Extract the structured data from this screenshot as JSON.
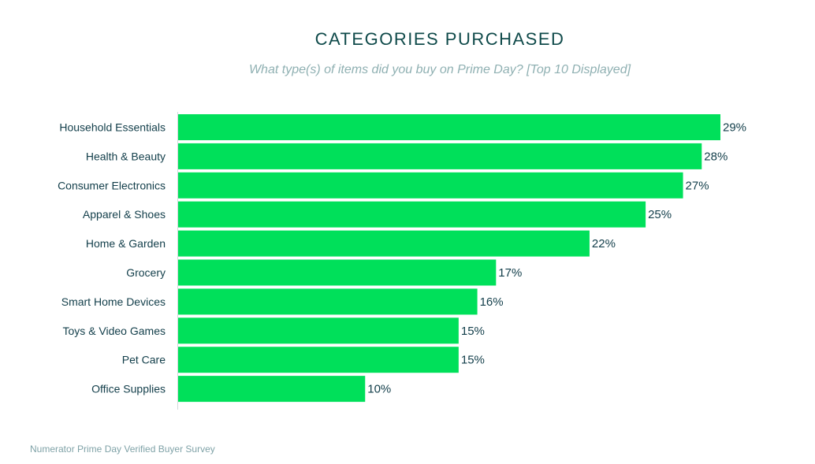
{
  "chart_data": {
    "type": "bar",
    "orientation": "horizontal",
    "title": "CATEGORIES PURCHASED",
    "subtitle": "What type(s) of items did you buy on Prime Day? [Top 10 Displayed]",
    "categories": [
      "Household Essentials",
      "Health & Beauty",
      "Consumer Electronics",
      "Apparel & Shoes",
      "Home & Garden",
      "Grocery",
      "Smart Home Devices",
      "Toys & Video Games",
      "Pet Care",
      "Office Supplies"
    ],
    "values": [
      29,
      28,
      27,
      25,
      22,
      17,
      16,
      15,
      15,
      10
    ],
    "value_labels": [
      "29%",
      "28%",
      "27%",
      "25%",
      "22%",
      "17%",
      "16%",
      "15%",
      "15%",
      "10%"
    ],
    "unit": "%",
    "xlim": [
      0,
      29
    ],
    "grid": false,
    "bar_color": "#00e05a",
    "source": "Numerator Prime Day Verified Buyer Survey"
  }
}
